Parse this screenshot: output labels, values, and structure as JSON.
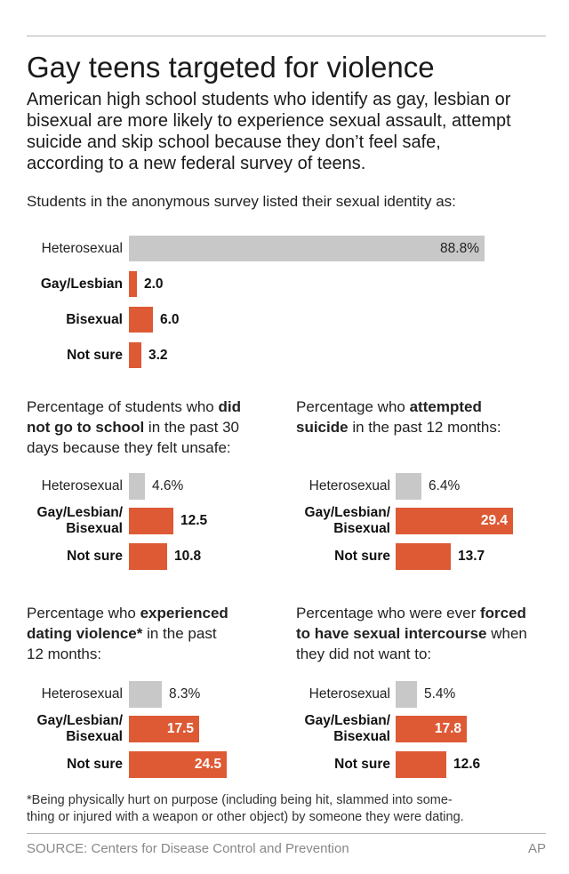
{
  "header": {
    "title": "Gay teens targeted for violence",
    "dek_lines": [
      "American high school students who identify as gay, lesbian or",
      "bisexual are more likely to experience sexual assault, attempt",
      "suicide and skip school because they don’t feel safe,",
      "according to a new federal survey of teens."
    ]
  },
  "chart_data": [
    {
      "type": "bar",
      "title": "Students in the anonymous survey listed their sexual identity as:",
      "categories": [
        "Heterosexual",
        "Gay/Lesbian",
        "Bisexual",
        "Not sure"
      ],
      "values": [
        88.8,
        2.0,
        6.0,
        3.2
      ],
      "value_labels": [
        "88.8%",
        "2.0",
        "6.0",
        "3.2"
      ],
      "colors": [
        "#c8c8c8",
        "#dd5a35",
        "#dd5a35",
        "#dd5a35"
      ]
    },
    {
      "type": "bar",
      "title_lines": [
        [
          {
            "t": "Percentage of students who ",
            "b": false
          },
          {
            "t": "did",
            "b": true
          }
        ],
        [
          {
            "t": "not go to school",
            "b": true
          },
          {
            "t": " in the past 30",
            "b": false
          }
        ],
        [
          {
            "t": "days because they felt unsafe:",
            "b": false
          }
        ]
      ],
      "categories": [
        "Heterosexual",
        "Gay/Lesbian/\nBisexual",
        "Not sure"
      ],
      "values": [
        4.6,
        12.5,
        10.8
      ],
      "value_labels": [
        "4.6%",
        "12.5",
        "10.8"
      ],
      "colors": [
        "#c8c8c8",
        "#dd5a35",
        "#dd5a35"
      ]
    },
    {
      "type": "bar",
      "title_lines": [
        [
          {
            "t": "Percentage who ",
            "b": false
          },
          {
            "t": "attempted",
            "b": true
          }
        ],
        [
          {
            "t": "suicide",
            "b": true
          },
          {
            "t": " in the past 12 months:",
            "b": false
          }
        ]
      ],
      "categories": [
        "Heterosexual",
        "Gay/Lesbian/\nBisexual",
        "Not sure"
      ],
      "values": [
        6.4,
        29.4,
        13.7
      ],
      "value_labels": [
        "6.4%",
        "29.4",
        "13.7"
      ],
      "colors": [
        "#c8c8c8",
        "#dd5a35",
        "#dd5a35"
      ]
    },
    {
      "type": "bar",
      "title_lines": [
        [
          {
            "t": "Percentage who ",
            "b": false
          },
          {
            "t": "experienced",
            "b": true
          }
        ],
        [
          {
            "t": "dating violence*",
            "b": true
          },
          {
            "t": " in the past",
            "b": false
          }
        ],
        [
          {
            "t": "12 months:",
            "b": false
          }
        ]
      ],
      "categories": [
        "Heterosexual",
        "Gay/Lesbian/\nBisexual",
        "Not sure"
      ],
      "values": [
        8.3,
        17.5,
        24.5
      ],
      "value_labels": [
        "8.3%",
        "17.5",
        "24.5"
      ],
      "colors": [
        "#c8c8c8",
        "#dd5a35",
        "#dd5a35"
      ]
    },
    {
      "type": "bar",
      "title_lines": [
        [
          {
            "t": "Percentage who were ever ",
            "b": false
          },
          {
            "t": "forced",
            "b": true
          }
        ],
        [
          {
            "t": "to have sexual intercourse",
            "b": true
          },
          {
            "t": " when",
            "b": false
          }
        ],
        [
          {
            "t": "they did not want to:",
            "b": false
          }
        ]
      ],
      "categories": [
        "Heterosexual",
        "Gay/Lesbian/\nBisexual",
        "Not sure"
      ],
      "values": [
        5.4,
        17.8,
        12.6
      ],
      "value_labels": [
        "5.4%",
        "17.8",
        "12.6"
      ],
      "colors": [
        "#c8c8c8",
        "#dd5a35",
        "#dd5a35"
      ]
    }
  ],
  "footnote_lines": [
    "*Being physically hurt on purpose (including being hit, slammed into some-",
    "thing or injured with a weapon or other object) by someone they were dating."
  ],
  "source": "SOURCE: Centers for Disease Control and Prevention",
  "credit": "AP"
}
